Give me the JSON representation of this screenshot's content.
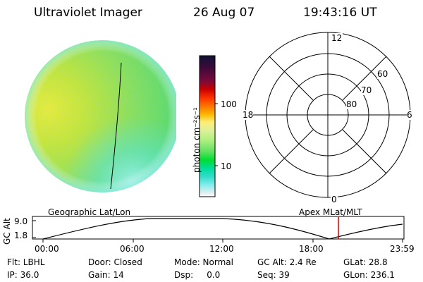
{
  "header": {
    "instrument": "Ultraviolet Imager",
    "date": "26 Aug 07",
    "time": "19:43:16 UT"
  },
  "colorbar": {
    "unit_label": "photon cm⁻²s⁻¹",
    "ticks": [
      "100",
      "10"
    ],
    "colors": [
      "#111133",
      "#3a0a3a",
      "#7a0a3a",
      "#cc0000",
      "#ff3300",
      "#ff7700",
      "#ffbb00",
      "#ffee77",
      "#ddf099",
      "#aef080",
      "#60e060",
      "#00dd33",
      "#00dd99",
      "#33ddcc",
      "#88eeee",
      "#ddeeee",
      "#ffffff"
    ]
  },
  "polar": {
    "mlt_labels": {
      "top": "12",
      "bottom": "0",
      "left": "18",
      "right": "6"
    },
    "lat_labels": [
      "60",
      "70",
      "80"
    ]
  },
  "timeline": {
    "left_title": "Geographic Lat/Lon",
    "right_title": "Apex MLat/MLT",
    "y_axis_label": "GC Alt",
    "y_ticks": [
      "9.0",
      "1.8"
    ],
    "x_ticks": [
      "00:00",
      "06:00",
      "12:00",
      "18:00",
      "23:59"
    ],
    "current_time_marker": "19:43",
    "marker_color": "#cc0000"
  },
  "info": {
    "filter": "Flt: LBHL",
    "door": "Door: Closed",
    "mode": "Mode: Normal",
    "gc_alt": "GC Alt: 2.4 Re",
    "glat": "GLat:  28.8",
    "ip": "IP: 36.0",
    "gain": "Gain: 14",
    "dsp": "Dsp:     0.0",
    "seq": "Seq: 39",
    "glon": "GLon: 236.1"
  }
}
